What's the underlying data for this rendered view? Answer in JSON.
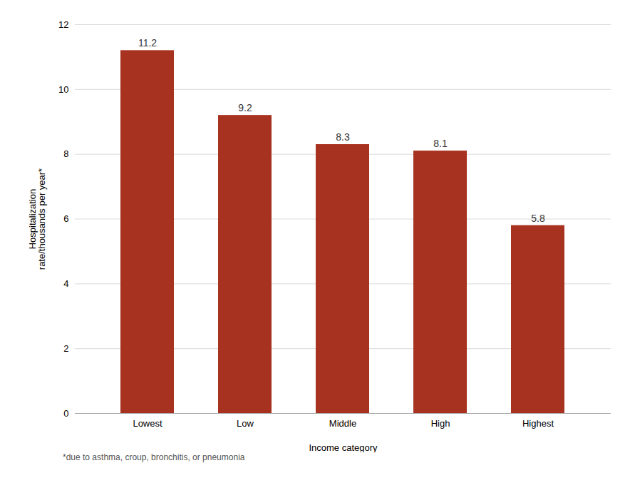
{
  "chart_data": {
    "type": "bar",
    "categories": [
      "Lowest",
      "Low",
      "Middle",
      "High",
      "Highest"
    ],
    "values": [
      11.2,
      9.2,
      8.3,
      8.1,
      5.8
    ],
    "color": "#A83220",
    "xlabel": "Income category",
    "ylabel": "Hospitalization\nrate/thousands per year*",
    "footnote": "*due to asthma, croup, bronchitis, or pneumonia",
    "ylim": [
      0,
      12
    ],
    "yticks": [
      0,
      2,
      4,
      6,
      8,
      10,
      12
    ],
    "grid": true,
    "data_labels": true
  }
}
